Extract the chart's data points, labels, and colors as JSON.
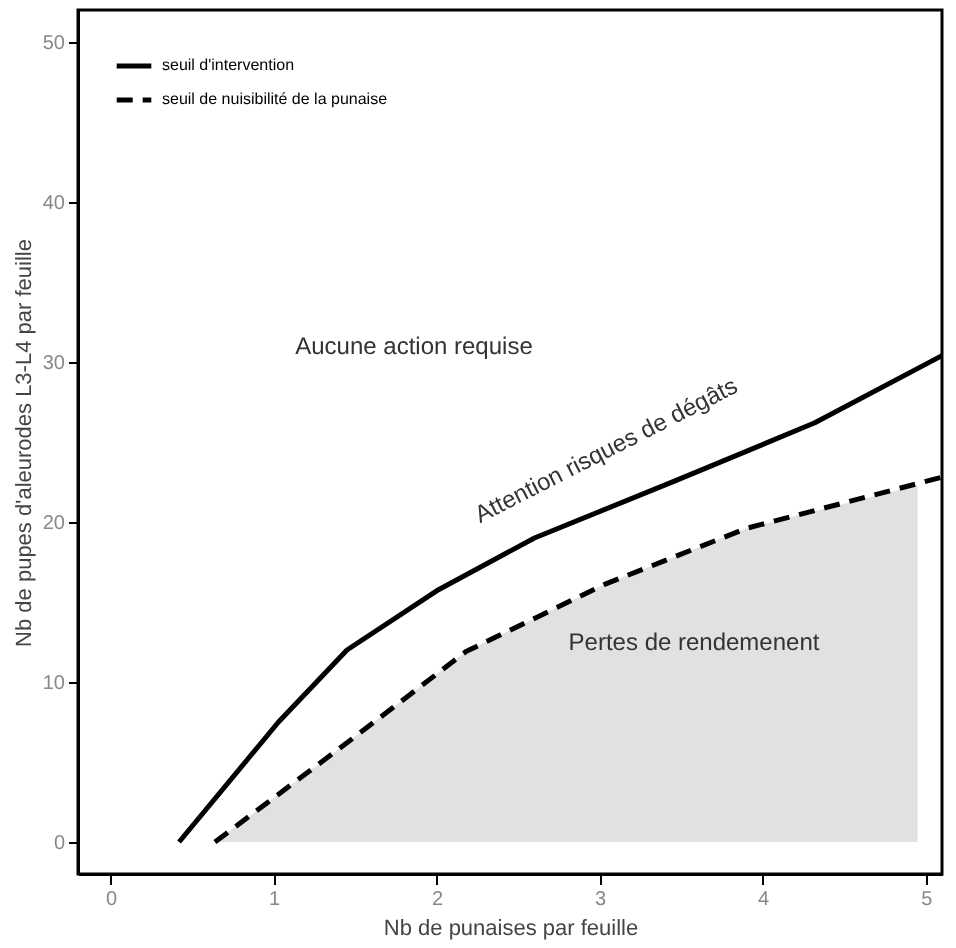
{
  "chart_data": {
    "type": "line",
    "xlabel": "Nb de punaises par feuille",
    "ylabel": "Nb de pupes d'aleurodes L3-L4 par feuille",
    "x": [
      0.42,
      1.03,
      1.45,
      2.0,
      2.6,
      3.47,
      4.32,
      5.1
    ],
    "series": [
      {
        "name": "seuil d'intervention",
        "color": "#000000",
        "line_style": "solid",
        "values": [
          0,
          7.5,
          12,
          15.7,
          19,
          22.6,
          26.2,
          30.4
        ]
      },
      {
        "name": "seuil de nuisibilité de la punaise",
        "color": "#000000",
        "line_style": "dashed",
        "x": [
          0.64,
          1.45,
          2.18,
          3.03,
          3.9,
          5.1
        ],
        "values": [
          0,
          6.2,
          11.9,
          16.1,
          19.6,
          22.8
        ]
      },
      {
        "type": "area",
        "color": "#d9d9d9",
        "x": [
          0.64,
          1.45,
          2.18,
          3.03,
          3.9,
          4.95
        ],
        "values": [
          0,
          6.2,
          11.9,
          16.1,
          19.6,
          22.3
        ]
      }
    ],
    "xlim": [
      -0.2,
      5.1
    ],
    "ylim": [
      -2,
      52
    ],
    "xticks": [
      0,
      1,
      2,
      3,
      4,
      5
    ],
    "yticks": [
      0,
      10,
      20,
      30,
      40,
      50
    ],
    "grid": false,
    "legend": "top left",
    "marker": "none",
    "annotations": [
      "Aucune action requise",
      "Attention risques de dégâts",
      "Pertes de rendemenent"
    ]
  }
}
